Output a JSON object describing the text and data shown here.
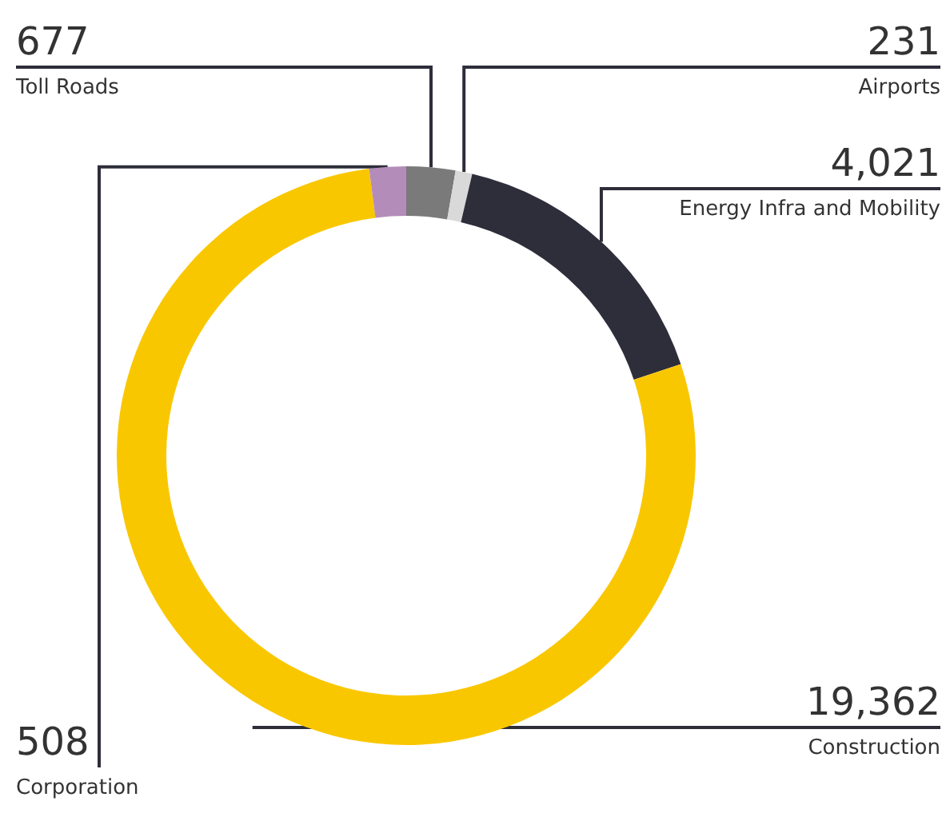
{
  "chart_data": {
    "type": "donut",
    "categories": [
      "Toll Roads",
      "Airports",
      "Energy Infra and Mobility",
      "Construction",
      "Corporation"
    ],
    "values": [
      677,
      231,
      4021,
      19362,
      508
    ],
    "colors": [
      "#7a7a7a",
      "#d9d9d9",
      "#2e2d3a",
      "#f9c700",
      "#b48cb9"
    ],
    "value_labels": [
      "677",
      "231",
      "4,021",
      "19,362",
      "508"
    ],
    "legend": false
  }
}
